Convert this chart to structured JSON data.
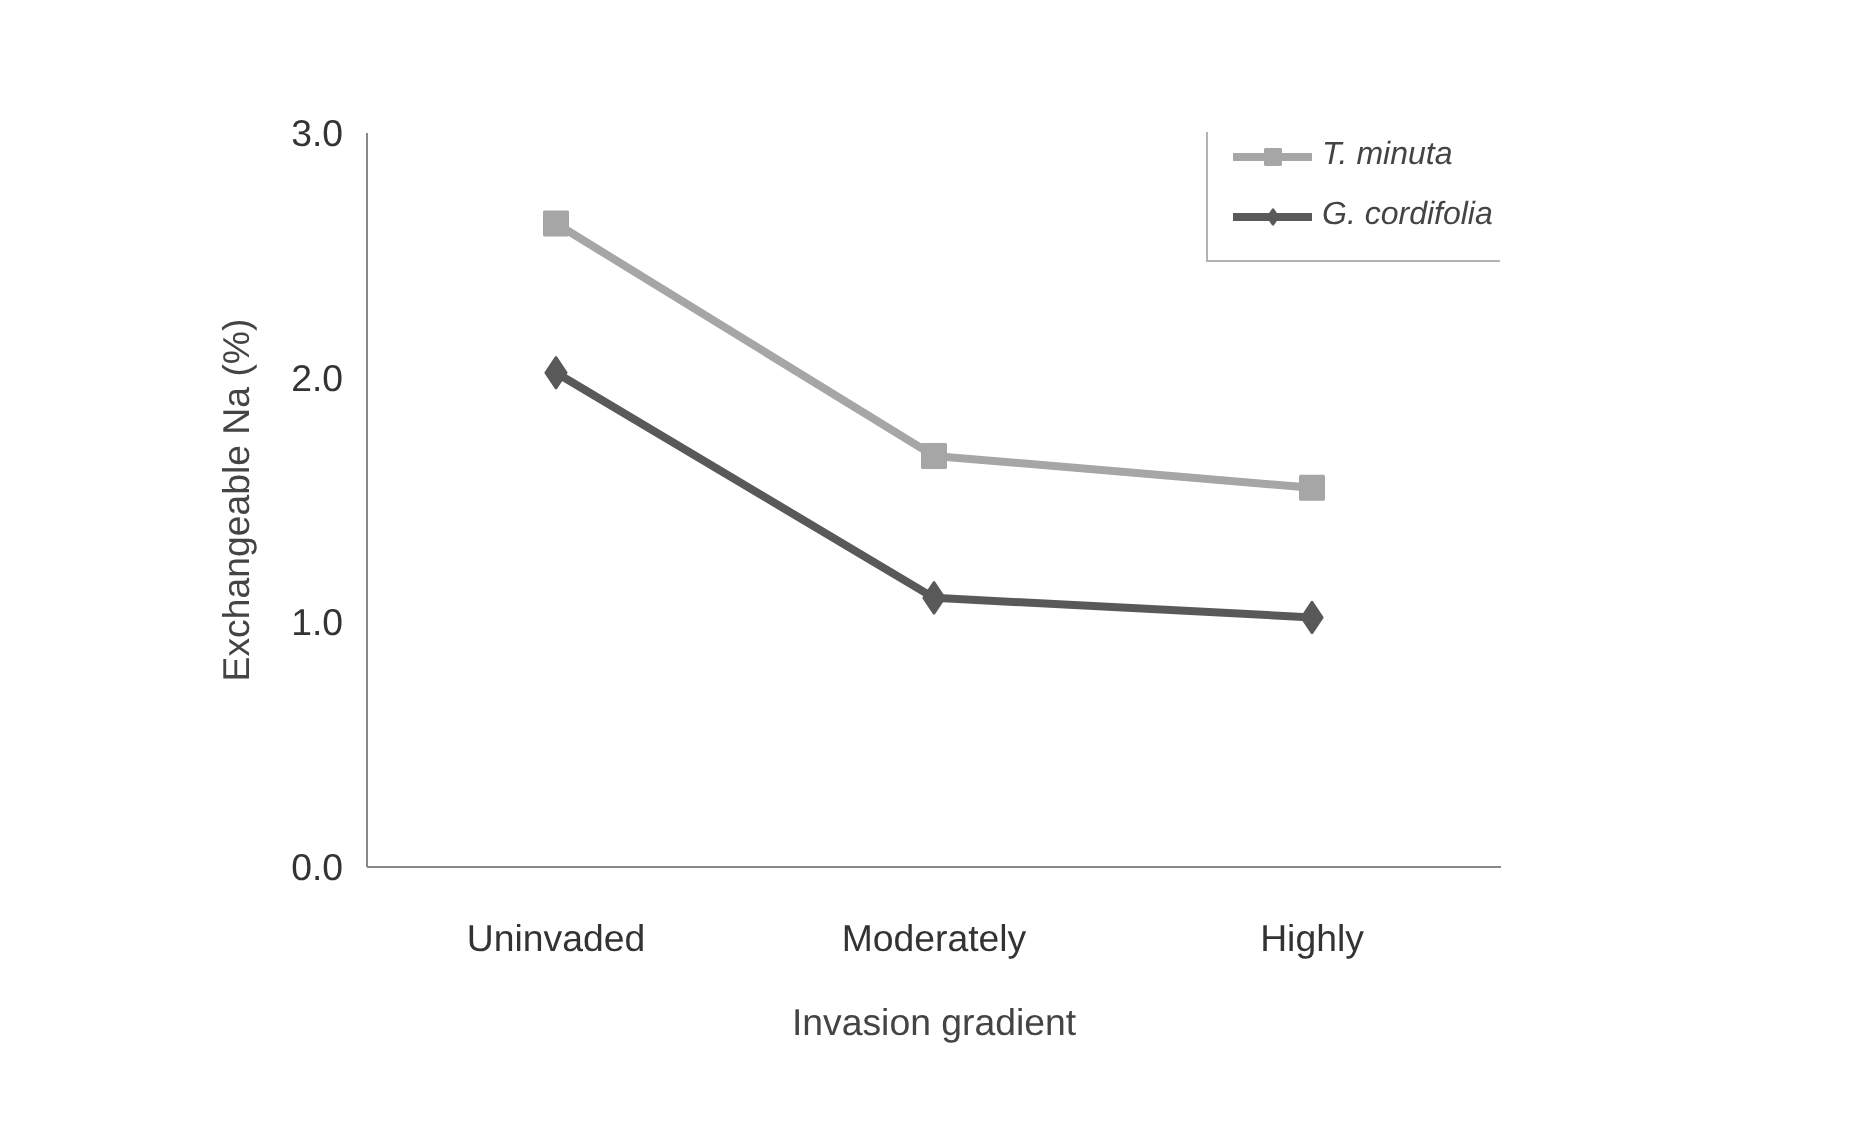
{
  "chart_data": {
    "type": "line",
    "xlabel": "Invasion gradient",
    "ylabel": "Exchangeable Na (%)",
    "categories": [
      "Uninvaded",
      "Moderately",
      "Highly"
    ],
    "series": [
      {
        "name": "T. minuta",
        "color": "#a6a6a6",
        "values": [
          2.63,
          1.68,
          1.55
        ],
        "marker": "square"
      },
      {
        "name": "G. cordifolia",
        "color": "#595959",
        "values": [
          2.02,
          1.1,
          1.02
        ],
        "marker": "diamond"
      }
    ],
    "ylim": [
      0,
      3
    ],
    "yticks": [
      {
        "value": 0,
        "label": "0.0"
      },
      {
        "value": 1,
        "label": "1.0"
      },
      {
        "value": 2,
        "label": "2.0"
      },
      {
        "value": 3,
        "label": "3.0"
      }
    ],
    "grid": false,
    "legend": "top right",
    "line_style": "solid"
  }
}
